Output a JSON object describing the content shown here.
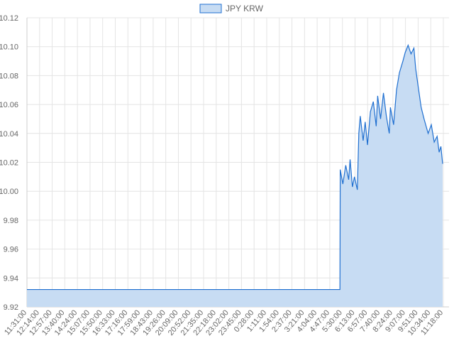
{
  "chart_data": {
    "type": "area",
    "title": "",
    "xlabel": "",
    "ylabel": "",
    "legend": {
      "position": "top",
      "entries": [
        "JPY KRW"
      ]
    },
    "ylim": [
      9.92,
      10.12
    ],
    "y_ticks": [
      "10.12",
      "10.10",
      "10.08",
      "10.06",
      "10.04",
      "10.02",
      "10.00",
      "9.98",
      "9.96",
      "9.94",
      "9.92"
    ],
    "x_ticks": [
      "11:31:00",
      "12:14:00",
      "12:57:00",
      "13:40:00",
      "14:24:00",
      "15:07:00",
      "15:50:00",
      "16:33:00",
      "17:16:00",
      "17:59:00",
      "18:43:00",
      "19:26:00",
      "20:09:00",
      "20:52:00",
      "21:35:00",
      "22:18:00",
      "23:02:00",
      "23:45:00",
      "0:28:00",
      "1:11:00",
      "1:54:00",
      "2:37:00",
      "3:21:00",
      "4:04:00",
      "4:47:00",
      "5:30:00",
      "6:13:00",
      "6:57:00",
      "7:40:00",
      "8:24:00",
      "9:07:00",
      "9:51:00",
      "10:34:00",
      "11:18:00"
    ],
    "grid": true,
    "series": [
      {
        "name": "JPY KRW",
        "color": "#1f6fd0",
        "fill": "#c7dcf3",
        "points": [
          [
            "11:31:00",
            9.932
          ],
          [
            "5:30:00",
            9.932
          ],
          [
            "5:31:00",
            10.015
          ],
          [
            "5:40:00",
            10.005
          ],
          [
            "5:50:00",
            10.018
          ],
          [
            "6:00:00",
            10.008
          ],
          [
            "6:05:00",
            10.022
          ],
          [
            "6:13:00",
            10.003
          ],
          [
            "6:20:00",
            10.01
          ],
          [
            "6:30:00",
            10.001
          ],
          [
            "6:35:00",
            10.04
          ],
          [
            "6:40:00",
            10.052
          ],
          [
            "6:50:00",
            10.035
          ],
          [
            "6:57:00",
            10.048
          ],
          [
            "7:05:00",
            10.032
          ],
          [
            "7:15:00",
            10.055
          ],
          [
            "7:25:00",
            10.062
          ],
          [
            "7:35:00",
            10.045
          ],
          [
            "7:40:00",
            10.066
          ],
          [
            "7:50:00",
            10.05
          ],
          [
            "8:00:00",
            10.068
          ],
          [
            "8:10:00",
            10.052
          ],
          [
            "8:20:00",
            10.04
          ],
          [
            "8:24:00",
            10.058
          ],
          [
            "8:35:00",
            10.046
          ],
          [
            "8:45:00",
            10.07
          ],
          [
            "8:55:00",
            10.082
          ],
          [
            "9:07:00",
            10.09
          ],
          [
            "9:15:00",
            10.096
          ],
          [
            "9:25:00",
            10.101
          ],
          [
            "9:35:00",
            10.095
          ],
          [
            "9:45:00",
            10.099
          ],
          [
            "9:51:00",
            10.085
          ],
          [
            "10:00:00",
            10.072
          ],
          [
            "10:10:00",
            10.058
          ],
          [
            "10:20:00",
            10.05
          ],
          [
            "10:34:00",
            10.04
          ],
          [
            "10:45:00",
            10.046
          ],
          [
            "10:55:00",
            10.034
          ],
          [
            "11:05:00",
            10.038
          ],
          [
            "11:12:00",
            10.027
          ],
          [
            "11:18:00",
            10.031
          ],
          [
            "11:24:00",
            10.019
          ]
        ]
      }
    ]
  }
}
